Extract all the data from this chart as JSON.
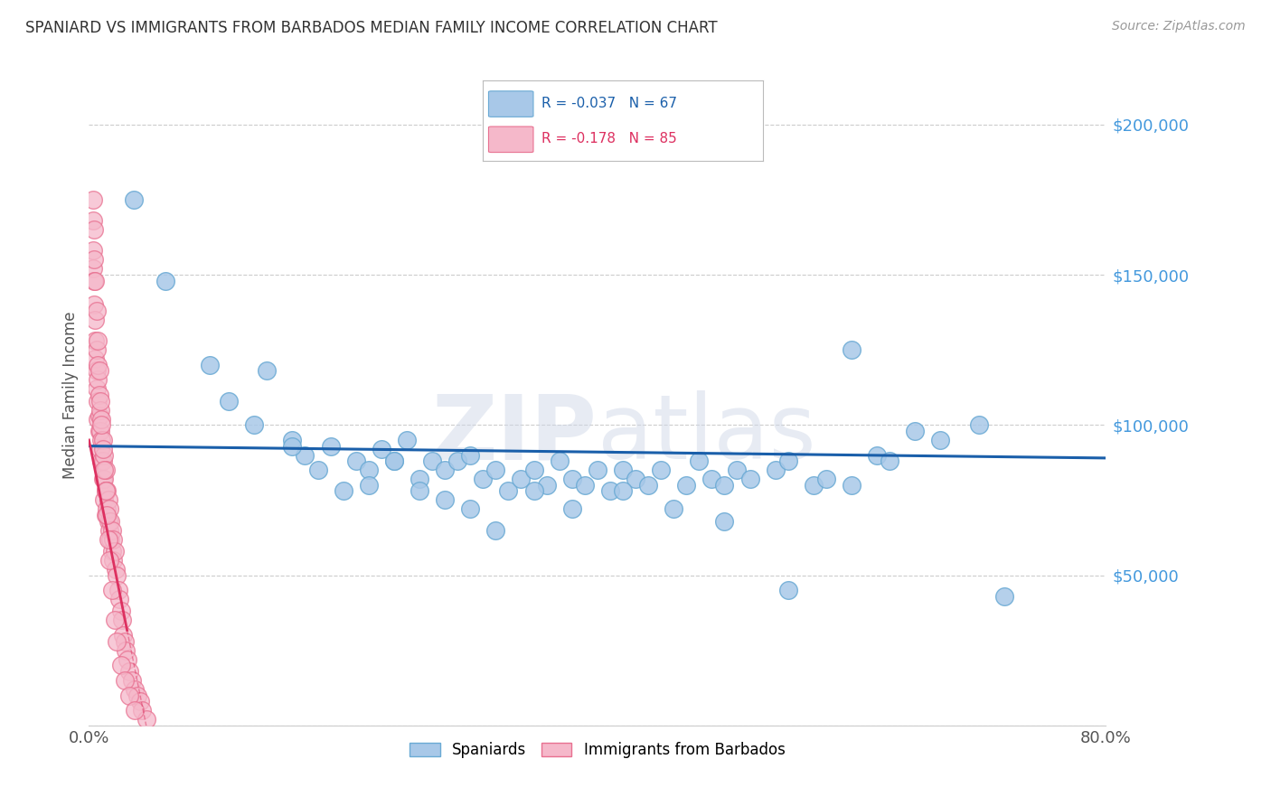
{
  "title": "SPANIARD VS IMMIGRANTS FROM BARBADOS MEDIAN FAMILY INCOME CORRELATION CHART",
  "source_text": "Source: ZipAtlas.com",
  "ylabel": "Median Family Income",
  "watermark": "ZIPatlas",
  "xlim": [
    0.0,
    0.8
  ],
  "ylim": [
    0,
    220000
  ],
  "yticks": [
    0,
    50000,
    100000,
    150000,
    200000
  ],
  "ytick_labels": [
    "",
    "$50,000",
    "$100,000",
    "$150,000",
    "$200,000"
  ],
  "xticks": [
    0.0,
    0.8
  ],
  "xtick_labels": [
    "0.0%",
    "80.0%"
  ],
  "blue_R": -0.037,
  "blue_N": 67,
  "pink_R": -0.178,
  "pink_N": 85,
  "blue_color": "#a8c8e8",
  "blue_edge_color": "#6aaad4",
  "pink_color": "#f5b8ca",
  "pink_edge_color": "#e87090",
  "blue_line_color": "#1a5faa",
  "pink_line_color": "#dd3060",
  "blue_label": "Spaniards",
  "pink_label": "Immigrants from Barbados",
  "background_color": "#ffffff",
  "grid_color": "#cccccc",
  "title_color": "#333333",
  "ytick_color": "#4499dd",
  "blue_scatter_x": [
    0.035,
    0.06,
    0.095,
    0.11,
    0.13,
    0.14,
    0.16,
    0.17,
    0.19,
    0.21,
    0.22,
    0.23,
    0.24,
    0.25,
    0.26,
    0.27,
    0.28,
    0.29,
    0.3,
    0.31,
    0.32,
    0.33,
    0.34,
    0.35,
    0.36,
    0.37,
    0.38,
    0.39,
    0.4,
    0.41,
    0.42,
    0.43,
    0.44,
    0.45,
    0.47,
    0.48,
    0.49,
    0.5,
    0.51,
    0.52,
    0.54,
    0.55,
    0.57,
    0.58,
    0.6,
    0.62,
    0.63,
    0.65,
    0.67,
    0.7,
    0.16,
    0.18,
    0.2,
    0.22,
    0.24,
    0.26,
    0.28,
    0.3,
    0.32,
    0.35,
    0.38,
    0.42,
    0.46,
    0.5,
    0.55,
    0.6,
    0.72
  ],
  "blue_scatter_y": [
    175000,
    148000,
    120000,
    108000,
    100000,
    118000,
    95000,
    90000,
    93000,
    88000,
    85000,
    92000,
    88000,
    95000,
    82000,
    88000,
    85000,
    88000,
    90000,
    82000,
    85000,
    78000,
    82000,
    85000,
    80000,
    88000,
    82000,
    80000,
    85000,
    78000,
    85000,
    82000,
    80000,
    85000,
    80000,
    88000,
    82000,
    80000,
    85000,
    82000,
    85000,
    88000,
    80000,
    82000,
    80000,
    90000,
    88000,
    98000,
    95000,
    100000,
    93000,
    85000,
    78000,
    80000,
    88000,
    78000,
    75000,
    72000,
    65000,
    78000,
    72000,
    78000,
    72000,
    68000,
    45000,
    125000,
    43000
  ],
  "pink_scatter_x": [
    0.003,
    0.003,
    0.003,
    0.004,
    0.004,
    0.004,
    0.005,
    0.005,
    0.005,
    0.006,
    0.006,
    0.006,
    0.007,
    0.007,
    0.007,
    0.007,
    0.008,
    0.008,
    0.008,
    0.009,
    0.009,
    0.009,
    0.01,
    0.01,
    0.01,
    0.011,
    0.011,
    0.011,
    0.012,
    0.012,
    0.012,
    0.013,
    0.013,
    0.013,
    0.014,
    0.014,
    0.015,
    0.015,
    0.016,
    0.016,
    0.017,
    0.017,
    0.018,
    0.018,
    0.019,
    0.019,
    0.02,
    0.021,
    0.022,
    0.023,
    0.024,
    0.025,
    0.026,
    0.027,
    0.028,
    0.029,
    0.03,
    0.032,
    0.034,
    0.036,
    0.038,
    0.04,
    0.042,
    0.045,
    0.003,
    0.004,
    0.005,
    0.006,
    0.007,
    0.008,
    0.009,
    0.01,
    0.011,
    0.012,
    0.013,
    0.014,
    0.015,
    0.016,
    0.018,
    0.02,
    0.022,
    0.025,
    0.028,
    0.032,
    0.036
  ],
  "pink_scatter_y": [
    168000,
    158000,
    152000,
    148000,
    140000,
    155000,
    135000,
    128000,
    122000,
    118000,
    112000,
    125000,
    115000,
    108000,
    102000,
    120000,
    110000,
    103000,
    98000,
    105000,
    98000,
    92000,
    102000,
    95000,
    88000,
    95000,
    88000,
    82000,
    90000,
    82000,
    75000,
    85000,
    78000,
    70000,
    78000,
    72000,
    75000,
    68000,
    72000,
    65000,
    68000,
    62000,
    65000,
    58000,
    62000,
    55000,
    58000,
    52000,
    50000,
    45000,
    42000,
    38000,
    35000,
    30000,
    28000,
    25000,
    22000,
    18000,
    15000,
    12000,
    10000,
    8000,
    5000,
    2000,
    175000,
    165000,
    148000,
    138000,
    128000,
    118000,
    108000,
    100000,
    92000,
    85000,
    78000,
    70000,
    62000,
    55000,
    45000,
    35000,
    28000,
    20000,
    15000,
    10000,
    5000
  ]
}
